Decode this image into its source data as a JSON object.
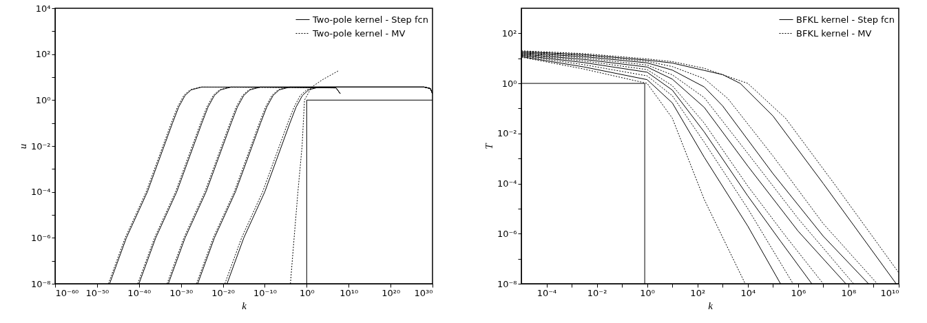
{
  "chart_data": [
    {
      "type": "line",
      "xlabel": "k",
      "ylabel": "u",
      "log": "xy",
      "legend": "top right",
      "xlim": [
        1e-60,
        1e+30
      ],
      "ylim": [
        1e-08,
        10000.0
      ],
      "xticks": [
        {
          "value": 1e-60,
          "label": "10⁻⁶⁰"
        },
        {
          "value": 1e-50,
          "label": "10⁻⁵⁰"
        },
        {
          "value": 1e-40,
          "label": "10⁻⁴⁰"
        },
        {
          "value": 1e-30,
          "label": "10⁻³⁰"
        },
        {
          "value": 1e-20,
          "label": "10⁻²⁰"
        },
        {
          "value": 1e-10,
          "label": "10⁻¹⁰"
        },
        {
          "value": 1,
          "label": "10⁰"
        },
        {
          "value": 10000000000.0,
          "label": "10¹⁰"
        },
        {
          "value": 1e+20,
          "label": "10²⁰"
        },
        {
          "value": 1e+30,
          "label": "10³⁰"
        }
      ],
      "yticks": [
        {
          "value": 1e-08,
          "label": "10⁻⁸"
        },
        {
          "value": 1e-07,
          "label": null
        },
        {
          "value": 1e-06,
          "label": "10⁻⁶"
        },
        {
          "value": 1e-05,
          "label": null
        },
        {
          "value": 0.0001,
          "label": "10⁻⁴"
        },
        {
          "value": 0.001,
          "label": null
        },
        {
          "value": 0.01,
          "label": "10⁻²"
        },
        {
          "value": 0.1,
          "label": null
        },
        {
          "value": 1,
          "label": "10⁰"
        },
        {
          "value": 10,
          "label": null
        },
        {
          "value": 100,
          "label": "10²"
        },
        {
          "value": 1000,
          "label": null
        },
        {
          "value": 10000.0,
          "label": "10⁴"
        }
      ],
      "series": [
        {
          "name": "Two-pole kernel - Step fcn",
          "color": "#000000",
          "line_style": "solid",
          "x": [
            1,
            1,
            1e+30
          ],
          "values": [
            1e-08,
            1,
            1
          ]
        },
        {
          "color": "#000000",
          "line_style": "solid",
          "x": [
            1e-47,
            1e-43,
            1e-38,
            1e-34,
            1e-32,
            3e-31,
            1e-29,
            3e-28,
            1e-25,
            1e+28,
            3e+29,
            1e+30
          ],
          "values": [
            1e-08,
            1e-06,
            0.0001,
            0.01,
            0.1,
            0.5,
            1.6,
            2.8,
            3.7,
            3.7,
            3.2,
            1.9
          ]
        },
        {
          "color": "#000000",
          "line_style": "solid",
          "x": [
            1e-40,
            1e-36,
            1e-31,
            1e-27,
            1e-25,
            3e-24,
            1e-22,
            3e-21,
            1e-18,
            1e+28,
            3e+29,
            1e+30
          ],
          "values": [
            1e-08,
            1e-06,
            0.0001,
            0.01,
            0.1,
            0.5,
            1.6,
            2.8,
            3.7,
            3.7,
            3.2,
            1.9
          ]
        },
        {
          "color": "#000000",
          "line_style": "solid",
          "x": [
            1e-33,
            1e-29,
            1e-24,
            1e-20,
            1e-18,
            3e-17,
            1e-15,
            3e-14,
            1e-11,
            1e+28,
            3e+29,
            1e+30
          ],
          "values": [
            1e-08,
            1e-06,
            0.0001,
            0.01,
            0.1,
            0.5,
            1.6,
            2.8,
            3.7,
            3.7,
            3.2,
            1.9
          ]
        },
        {
          "color": "#000000",
          "line_style": "solid",
          "x": [
            1e-26,
            1e-22,
            1e-17,
            1e-13,
            1e-11,
            3e-10,
            1e-08,
            3e-07,
            0.0001,
            1e+28,
            3e+29,
            1e+30
          ],
          "values": [
            1e-08,
            1e-06,
            0.0001,
            0.01,
            0.1,
            0.5,
            1.6,
            2.8,
            3.7,
            3.7,
            3.2,
            1.9
          ]
        },
        {
          "color": "#000000",
          "line_style": "solid",
          "x": [
            1e-19,
            1e-15,
            1e-10,
            1e-06,
            0.0001,
            0.003,
            0.1,
            3,
            1000,
            1e+28,
            3e+29,
            1e+30
          ],
          "values": [
            1e-08,
            1e-06,
            0.0001,
            0.01,
            0.1,
            0.5,
            1.6,
            2.8,
            3.7,
            3.7,
            3.2,
            1.9
          ]
        },
        {
          "name": "Two-pole kernel - MV",
          "color": "#000000",
          "line_style": "dotted",
          "x": [
            0.00013,
            0.001,
            0.008,
            0.08,
            0.3,
            15,
            8000,
            50000000.0
          ],
          "values": [
            1e-08,
            1e-06,
            0.0001,
            0.01,
            1,
            3.7,
            8,
            19.5
          ]
        },
        {
          "color": "#000000",
          "line_style": "dotted",
          "x": [
            5e-48,
            5e-44,
            5e-39,
            5e-35,
            5e-33,
            1.5e-31,
            5e-30,
            1.5e-28,
            5e-26,
            10000000.0,
            100000000.0
          ],
          "values": [
            1e-08,
            1e-06,
            0.0001,
            0.01,
            0.1,
            0.5,
            1.6,
            2.8,
            3.7,
            3.4,
            1.9
          ]
        },
        {
          "color": "#000000",
          "line_style": "dotted",
          "x": [
            5e-41,
            5e-37,
            5e-32,
            5e-28,
            5e-26,
            1.5e-24,
            5e-23,
            1.5e-21,
            5e-19,
            10000000.0,
            100000000.0
          ],
          "values": [
            1e-08,
            1e-06,
            0.0001,
            0.01,
            0.1,
            0.5,
            1.6,
            2.8,
            3.7,
            3.4,
            1.9
          ]
        },
        {
          "color": "#000000",
          "line_style": "dotted",
          "x": [
            5e-34,
            5e-30,
            5e-25,
            5e-21,
            5e-19,
            1.5e-17,
            5e-16,
            1.5e-14,
            5e-12,
            10000000.0,
            100000000.0
          ],
          "values": [
            1e-08,
            1e-06,
            0.0001,
            0.01,
            0.1,
            0.5,
            1.6,
            2.8,
            3.7,
            3.4,
            1.9
          ]
        },
        {
          "color": "#000000",
          "line_style": "dotted",
          "x": [
            5e-27,
            5e-23,
            5e-18,
            5e-14,
            5e-12,
            1.5e-10,
            5e-09,
            1.5e-07,
            5e-05,
            10000000.0,
            100000000.0
          ],
          "values": [
            1e-08,
            1e-06,
            0.0001,
            0.01,
            0.1,
            0.5,
            1.6,
            2.8,
            3.7,
            3.4,
            1.9
          ]
        },
        {
          "color": "#000000",
          "line_style": "dotted",
          "x": [
            3e-20,
            3e-16,
            3e-11,
            3e-07,
            3e-05,
            0.001,
            0.03,
            1,
            300,
            10000000.0,
            100000000.0
          ],
          "values": [
            1e-08,
            1e-06,
            0.0001,
            0.01,
            0.1,
            0.5,
            1.6,
            2.8,
            3.7,
            3.4,
            1.9
          ]
        }
      ]
    },
    {
      "type": "line",
      "xlabel": "k",
      "ylabel": "T",
      "log": "xy",
      "legend": "top right",
      "xlim": [
        1e-05,
        10000000000.0
      ],
      "ylim": [
        1e-08,
        1000.0
      ],
      "xticks": [
        {
          "value": 0.0001,
          "label": "10⁻⁴"
        },
        {
          "value": 0.001,
          "label": null
        },
        {
          "value": 0.01,
          "label": "10⁻²"
        },
        {
          "value": 0.1,
          "label": null
        },
        {
          "value": 1,
          "label": "10⁰"
        },
        {
          "value": 10,
          "label": null
        },
        {
          "value": 100,
          "label": "10²"
        },
        {
          "value": 1000,
          "label": null
        },
        {
          "value": 10000.0,
          "label": "10⁴"
        },
        {
          "value": 100000.0,
          "label": null
        },
        {
          "value": 1000000.0,
          "label": "10⁶"
        },
        {
          "value": 10000000.0,
          "label": null
        },
        {
          "value": 100000000.0,
          "label": "10⁸"
        },
        {
          "value": 1000000000.0,
          "label": null
        },
        {
          "value": 10000000000.0,
          "label": "10¹⁰"
        }
      ],
      "yticks": [
        {
          "value": 1e-08,
          "label": "10⁻⁸"
        },
        {
          "value": 1e-07,
          "label": null
        },
        {
          "value": 1e-06,
          "label": "10⁻⁶"
        },
        {
          "value": 1e-05,
          "label": null
        },
        {
          "value": 0.0001,
          "label": "10⁻⁴"
        },
        {
          "value": 0.001,
          "label": null
        },
        {
          "value": 0.01,
          "label": "10⁻²"
        },
        {
          "value": 0.1,
          "label": null
        },
        {
          "value": 1,
          "label": "10⁰"
        },
        {
          "value": 10,
          "label": null
        },
        {
          "value": 100,
          "label": "10²"
        }
      ],
      "series": [
        {
          "name": "BFKL kernel - Step fcn",
          "color": "#000000",
          "line_style": "solid",
          "x": [
            1e-05,
            0.8,
            0.8
          ],
          "values": [
            1,
            1,
            1e-08
          ]
        },
        {
          "color": "#000000",
          "line_style": "solid",
          "x": [
            1e-05,
            0.003,
            1,
            10,
            186,
            10000.0,
            200000.0
          ],
          "values": [
            11.7,
            4.57,
            1.41,
            0.166,
            0.00112,
            2e-06,
            1e-08
          ]
        },
        {
          "color": "#000000",
          "line_style": "solid",
          "x": [
            1e-05,
            0.003,
            1,
            10,
            186,
            10000.0,
            200000.0,
            3500000.0
          ],
          "values": [
            13.2,
            6.8,
            2.8,
            0.54,
            0.0115,
            3.2e-05,
            5e-07,
            1e-08
          ]
        },
        {
          "color": "#000000",
          "line_style": "solid",
          "x": [
            1e-05,
            0.003,
            1,
            10,
            186,
            10000.0,
            1000000.0,
            79000000.0
          ],
          "values": [
            14.8,
            9.1,
            4.5,
            1.48,
            0.11,
            0.0005,
            1.26e-06,
            1e-08
          ]
        },
        {
          "color": "#000000",
          "line_style": "solid",
          "x": [
            1e-05,
            0.003,
            1,
            10,
            186,
            1000,
            100000.0,
            10000000.0,
            630000000.0
          ],
          "values": [
            16.6,
            11.7,
            6.6,
            3.4,
            0.72,
            0.126,
            0.00025,
            7.9e-07,
            1e-08
          ]
        },
        {
          "color": "#000000",
          "line_style": "solid",
          "x": [
            1e-05,
            0.003,
            1,
            10,
            186,
            1000,
            5000,
            100000.0,
            10000000.0,
            7900000000.0
          ],
          "values": [
            18.6,
            14.1,
            8.5,
            6.5,
            3.3,
            2.24,
            1,
            0.05,
            0.0001,
            1e-08
          ]
        },
        {
          "name": "BFKL kernel - MV",
          "color": "#000000",
          "line_style": "dotted",
          "x": [
            1e-05,
            0.003,
            1,
            10,
            186,
            7900
          ],
          "values": [
            11.2,
            3.76,
            1,
            0.041,
            2.3e-05,
            1e-08
          ]
        },
        {
          "color": "#000000",
          "line_style": "dotted",
          "x": [
            1e-05,
            0.003,
            1,
            10,
            186,
            10000.0,
            630000.0
          ],
          "values": [
            12.6,
            5.6,
            2,
            0.32,
            0.0045,
            1e-05,
            1e-08
          ]
        },
        {
          "color": "#000000",
          "line_style": "dotted",
          "x": [
            1e-05,
            0.003,
            1,
            10,
            186,
            10000.0,
            320000.0,
            10000000.0
          ],
          "values": [
            14.1,
            7.9,
            3.55,
            0.81,
            0.026,
            7.9e-05,
            7.9e-07,
            1e-08
          ]
        },
        {
          "color": "#000000",
          "line_style": "dotted",
          "x": [
            1e-05,
            0.003,
            1,
            10,
            186,
            10000.0,
            1000000.0,
            160000000.0
          ],
          "values": [
            15.8,
            10.4,
            5.4,
            2.2,
            0.27,
            0.0016,
            4e-06,
            1e-08
          ]
        },
        {
          "color": "#000000",
          "line_style": "dotted",
          "x": [
            1e-05,
            0.003,
            1,
            10,
            186,
            1600,
            100000.0,
            10000000.0,
            1400000000.0
          ],
          "values": [
            17.8,
            13,
            7.6,
            4.7,
            1.55,
            0.25,
            0.00126,
            2.5e-06,
            1e-08
          ]
        },
        {
          "color": "#000000",
          "line_style": "dotted",
          "x": [
            1e-05,
            0.003,
            1,
            10,
            186,
            10000.0,
            320000.0,
            32000000.0,
            10000000000.0
          ],
          "values": [
            20,
            15.5,
            9.5,
            7.4,
            4,
            1,
            0.04,
            7.9e-05,
            2.75e-08
          ]
        }
      ]
    }
  ]
}
